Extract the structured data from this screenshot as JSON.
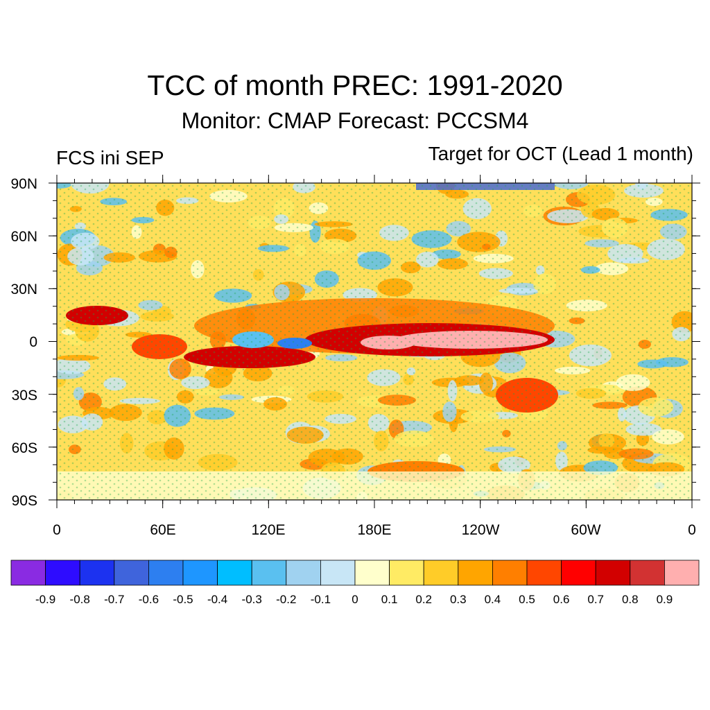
{
  "header": {
    "title": "TCC of month PREC: 1991-2020",
    "subtitle": "Monitor: CMAP   Forecast: PCCSM4",
    "left_label": "FCS ini SEP",
    "right_label": "Target for OCT (Lead 1 month)"
  },
  "map": {
    "lat_labels": [
      "90N",
      "60N",
      "30N",
      "0",
      "30S",
      "60S",
      "90S"
    ],
    "lon_labels": [
      "0",
      "60E",
      "120E",
      "180E",
      "120W",
      "60W",
      "0"
    ]
  },
  "colorbar": {
    "colors": [
      "#8a2be2",
      "#2e0cff",
      "#1c32f0",
      "#3f64dc",
      "#2d7ff0",
      "#1e96ff",
      "#00beff",
      "#5ac0f0",
      "#a0d2f0",
      "#c8e6f6",
      "#ffffcc",
      "#ffeb64",
      "#ffcc28",
      "#ffa500",
      "#ff7f00",
      "#ff4600",
      "#ff0000",
      "#d20000",
      "#d23232",
      "#ffafaf"
    ],
    "labels": [
      "-0.9",
      "-0.8",
      "-0.7",
      "-0.6",
      "-0.5",
      "-0.4",
      "-0.3",
      "-0.2",
      "-0.1",
      "0",
      "0.1",
      "0.2",
      "0.3",
      "0.4",
      "0.5",
      "0.6",
      "0.7",
      "0.8",
      "0.9"
    ]
  }
}
